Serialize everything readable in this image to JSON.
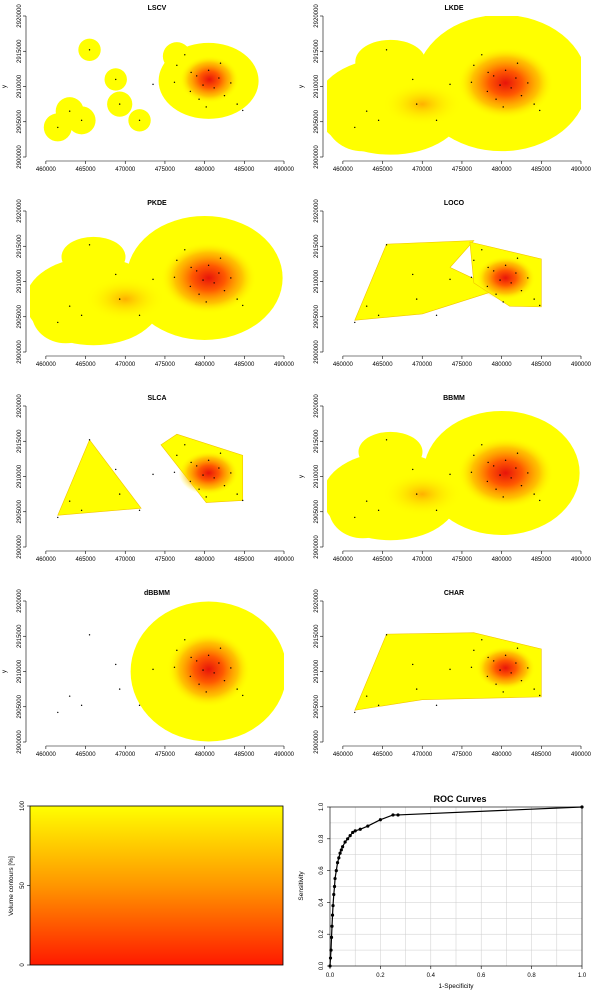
{
  "chart_data": [
    {
      "type": "heatmap",
      "title": "LSCV",
      "ylabel": "y",
      "xlim": [
        458000,
        490000
      ],
      "ylim": [
        2900000,
        2920000
      ],
      "xticks": [
        "460000",
        "465000",
        "470000",
        "475000",
        "480000",
        "485000",
        "490000"
      ],
      "yticks": [
        "2900000",
        "2905000",
        "2910000",
        "2915000",
        "2920000"
      ],
      "grid": false
    },
    {
      "type": "heatmap",
      "title": "LKDE",
      "ylabel": "y",
      "xlim": [
        458000,
        490000
      ],
      "ylim": [
        2900000,
        2920000
      ],
      "xticks": [
        "460000",
        "465000",
        "470000",
        "475000",
        "480000",
        "485000",
        "490000"
      ],
      "yticks": [
        "2900000",
        "2905000",
        "2910000",
        "2915000",
        "2920000"
      ],
      "grid": false
    },
    {
      "type": "heatmap",
      "title": "PKDE",
      "xlim": [
        458000,
        490000
      ],
      "ylim": [
        2900000,
        2920000
      ],
      "xticks": [
        "460000",
        "465000",
        "470000",
        "475000",
        "480000",
        "485000",
        "490000"
      ],
      "yticks": [
        "2900000",
        "2905000",
        "2910000",
        "2915000",
        "2920000"
      ],
      "grid": false
    },
    {
      "type": "heatmap",
      "title": "LOCO",
      "xlim": [
        458000,
        490000
      ],
      "ylim": [
        2900000,
        2920000
      ],
      "xticks": [
        "460000",
        "465000",
        "470000",
        "475000",
        "480000",
        "485000",
        "490000"
      ],
      "yticks": [
        "2900000",
        "2905000",
        "2910000",
        "2915000",
        "2920000"
      ],
      "grid": false
    },
    {
      "type": "heatmap",
      "title": "SLCA",
      "xlim": [
        458000,
        490000
      ],
      "ylim": [
        2900000,
        2920000
      ],
      "xticks": [
        "460000",
        "465000",
        "470000",
        "475000",
        "480000",
        "485000",
        "490000"
      ],
      "yticks": [
        "2900000",
        "2905000",
        "2910000",
        "2915000",
        "2920000"
      ],
      "grid": false
    },
    {
      "type": "heatmap",
      "title": "BBMM",
      "ylabel": "y",
      "xlim": [
        458000,
        490000
      ],
      "ylim": [
        2900000,
        2920000
      ],
      "xticks": [
        "460000",
        "465000",
        "470000",
        "475000",
        "480000",
        "485000",
        "490000"
      ],
      "yticks": [
        "2900000",
        "2905000",
        "2910000",
        "2915000",
        "2920000"
      ],
      "grid": false
    },
    {
      "type": "heatmap",
      "title": "dBBMM",
      "ylabel": "y",
      "xlim": [
        458000,
        490000
      ],
      "ylim": [
        2900000,
        2920000
      ],
      "xticks": [
        "460000",
        "465000",
        "470000",
        "475000",
        "480000",
        "485000",
        "490000"
      ],
      "yticks": [
        "2900000",
        "2905000",
        "2910000",
        "2915000",
        "2920000"
      ],
      "grid": false
    },
    {
      "type": "heatmap",
      "title": "CHAR",
      "xlim": [
        458000,
        490000
      ],
      "ylim": [
        2900000,
        2920000
      ],
      "xticks": [
        "460000",
        "465000",
        "470000",
        "475000",
        "480000",
        "485000",
        "490000"
      ],
      "yticks": [
        "2900000",
        "2905000",
        "2910000",
        "2915000",
        "2920000"
      ],
      "grid": false
    },
    {
      "type": "heatmap",
      "title": "",
      "ylabel": "Volume contours [%]",
      "ylim": [
        0,
        100
      ],
      "yticks": [
        "0",
        "50",
        "100"
      ],
      "colors": [
        "#ff1a00",
        "#ffff00"
      ]
    },
    {
      "type": "line",
      "title": "ROC Curves",
      "xlabel": "1-Specificity",
      "ylabel": "Sensitivity",
      "xlim": [
        0,
        1
      ],
      "ylim": [
        0,
        1
      ],
      "xticks": [
        "0.0",
        "0.2",
        "0.4",
        "0.6",
        "0.8",
        "1.0"
      ],
      "yticks": [
        "0.0",
        "0.2",
        "0.4",
        "0.6",
        "0.8",
        "1.0"
      ],
      "grid": true,
      "x": [
        0,
        0.002,
        0.004,
        0.006,
        0.008,
        0.01,
        0.012,
        0.015,
        0.018,
        0.02,
        0.025,
        0.03,
        0.035,
        0.04,
        0.045,
        0.05,
        0.06,
        0.07,
        0.08,
        0.09,
        0.1,
        0.12,
        0.15,
        0.2,
        0.25,
        0.27,
        1.0
      ],
      "y": [
        0,
        0.05,
        0.1,
        0.18,
        0.25,
        0.32,
        0.38,
        0.45,
        0.5,
        0.55,
        0.6,
        0.65,
        0.68,
        0.71,
        0.73,
        0.75,
        0.78,
        0.8,
        0.82,
        0.84,
        0.85,
        0.86,
        0.88,
        0.92,
        0.95,
        0.95,
        1.0
      ]
    }
  ],
  "colors": {
    "low": "#ffff00",
    "high": "#ff1a00",
    "mid": "#ff9900"
  }
}
